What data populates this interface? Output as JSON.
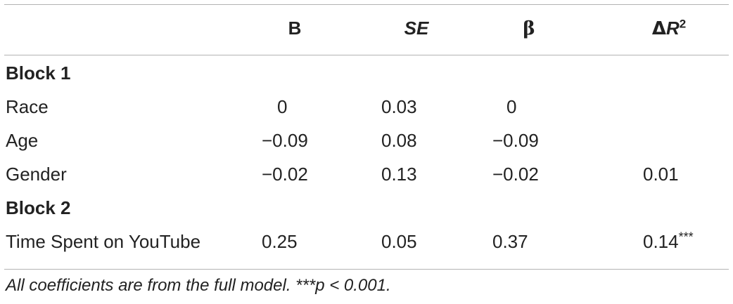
{
  "table": {
    "headers": {
      "b": "B",
      "se": "SE",
      "beta": "β",
      "delta_r2": {
        "delta": "Δ",
        "r": "R",
        "sup": "2"
      }
    },
    "blocks": [
      {
        "label": "Block 1",
        "rows": [
          {
            "variable": "Race",
            "b": "0",
            "se": "0.03",
            "beta": "0",
            "delta_r2": ""
          },
          {
            "variable": "Age",
            "b": "−0.09",
            "se": "0.08",
            "beta": "−0.09",
            "delta_r2": ""
          },
          {
            "variable": "Gender",
            "b": "−0.02",
            "se": "0.13",
            "beta": "−0.02",
            "delta_r2": "0.01"
          }
        ]
      },
      {
        "label": "Block 2",
        "rows": [
          {
            "variable": "Time Spent on YouTube",
            "b": "0.25",
            "se": "0.05",
            "beta": "0.37",
            "delta_r2": "0.14",
            "stars": "***"
          }
        ]
      }
    ],
    "note": "All coefficients are from the full model. ***p < 0.001."
  }
}
